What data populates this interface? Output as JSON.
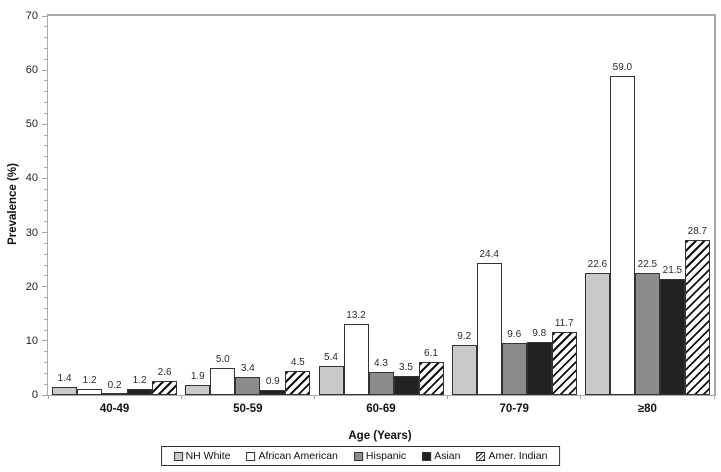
{
  "chart_data": {
    "type": "bar",
    "title": "",
    "categories": [
      "40-49",
      "50-59",
      "60-69",
      "70-79",
      "≥80"
    ],
    "series": [
      {
        "name": "NH White",
        "values": [
          1.4,
          1.9,
          5.4,
          9.2,
          22.6
        ],
        "fill": "#c9c9c9",
        "pattern": "solid"
      },
      {
        "name": "African American",
        "values": [
          1.2,
          5.0,
          13.2,
          24.4,
          59.0
        ],
        "fill": "#ffffff",
        "pattern": "solid"
      },
      {
        "name": "Hispanic",
        "values": [
          0.2,
          3.4,
          4.3,
          9.6,
          22.5
        ],
        "fill": "#8c8c8c",
        "pattern": "solid"
      },
      {
        "name": "Asian",
        "values": [
          1.2,
          0.9,
          3.5,
          9.8,
          21.5
        ],
        "fill": "#222222",
        "pattern": "solid"
      },
      {
        "name": "Amer. Indian",
        "values": [
          2.6,
          4.5,
          6.1,
          11.7,
          28.7
        ],
        "fill": "#ffffff",
        "pattern": "hatch"
      }
    ],
    "xlabel": "Age (Years)",
    "ylabel": "Prevalence (%)",
    "ylim": [
      0,
      70
    ],
    "yticks": [
      0,
      10,
      20,
      30,
      40,
      50,
      60,
      70
    ],
    "minor_tick_step": 2,
    "value_label_decimals": 1,
    "grid": false,
    "legend_position": "bottom",
    "colors": {
      "axis": "#a6a6a6",
      "bar_border": "#333333",
      "hatch": "#111111",
      "text": "#111111"
    }
  }
}
